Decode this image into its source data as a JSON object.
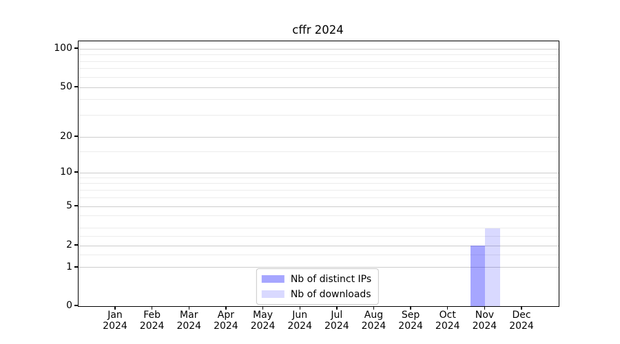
{
  "chart_data": {
    "type": "bar",
    "title": "cffr 2024",
    "xlabel": "",
    "ylabel": "",
    "scale": "symlog",
    "grid": "both",
    "legend_position": "lower center",
    "categories": [
      "Jan",
      "Feb",
      "Mar",
      "Apr",
      "May",
      "Jun",
      "Jul",
      "Aug",
      "Sep",
      "Oct",
      "Nov",
      "Dec"
    ],
    "year_label": "2024",
    "y_ticks": [
      0,
      1,
      2,
      5,
      10,
      20,
      50,
      100
    ],
    "y_minor_ticks": [
      1.5,
      2.5,
      3,
      4,
      6,
      7,
      8,
      9,
      15,
      30,
      40,
      60,
      70,
      80,
      90
    ],
    "ylim": [
      0,
      110
    ],
    "series": [
      {
        "name": "Nb of distinct IPs",
        "color": "rgba(0,0,255,0.35)",
        "values": [
          0,
          0,
          0,
          0,
          0,
          0,
          0,
          0,
          0,
          0,
          2,
          0
        ]
      },
      {
        "name": "Nb of downloads",
        "color": "rgba(0,0,255,0.15)",
        "values": [
          0,
          0,
          0,
          0,
          0,
          0,
          0,
          0,
          0,
          0,
          3,
          0
        ]
      }
    ]
  },
  "colors": {
    "spine": "#000000",
    "grid_major": "#cccccc",
    "grid_minor": "#ececec",
    "legend_border": "#c9c9c9",
    "background": "#ffffff"
  }
}
